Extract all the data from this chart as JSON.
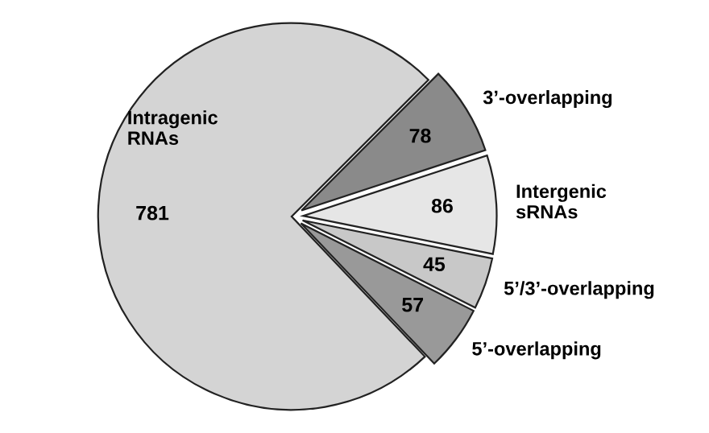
{
  "chart_data": {
    "type": "pie",
    "categories": [
      "3’-overlapping",
      "Intergenic\nsRNAs",
      "5’/3’-overlapping",
      "5’-overlapping",
      "Intragenic\nRNAs"
    ],
    "values": [
      78,
      86,
      45,
      57,
      781
    ],
    "colors": [
      "#8a8a8a",
      "#e6e6e6",
      "#c8c8c8",
      "#999999",
      "#d4d4d4"
    ],
    "data_labels": true,
    "legend": false
  }
}
